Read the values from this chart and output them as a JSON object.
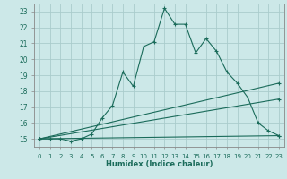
{
  "title": "",
  "xlabel": "Humidex (Indice chaleur)",
  "background_color": "#cce8e8",
  "grid_color": "#aacccc",
  "line_color": "#1a6b5a",
  "xlim": [
    -0.5,
    23.5
  ],
  "ylim": [
    14.5,
    23.5
  ],
  "xticks": [
    0,
    1,
    2,
    3,
    4,
    5,
    6,
    7,
    8,
    9,
    10,
    11,
    12,
    13,
    14,
    15,
    16,
    17,
    18,
    19,
    20,
    21,
    22,
    23
  ],
  "yticks": [
    15,
    16,
    17,
    18,
    19,
    20,
    21,
    22,
    23
  ],
  "series": [
    {
      "x": [
        0,
        1,
        2,
        3,
        4,
        5,
        6,
        7,
        8,
        9,
        10,
        11,
        12,
        13,
        14,
        15,
        16,
        17,
        18,
        19,
        20,
        21,
        22,
        23
      ],
      "y": [
        15,
        15,
        15,
        14.85,
        15,
        15.3,
        16.3,
        17.1,
        19.2,
        18.3,
        20.8,
        21.1,
        23.2,
        22.2,
        22.2,
        20.4,
        21.3,
        20.5,
        19.2,
        18.5,
        17.6,
        16.0,
        15.5,
        15.2
      ],
      "marker": true
    },
    {
      "x": [
        0,
        23
      ],
      "y": [
        15,
        18.5
      ],
      "marker": true
    },
    {
      "x": [
        0,
        23
      ],
      "y": [
        15,
        17.5
      ],
      "marker": true
    },
    {
      "x": [
        0,
        23
      ],
      "y": [
        15,
        15.2
      ],
      "marker": true
    }
  ]
}
